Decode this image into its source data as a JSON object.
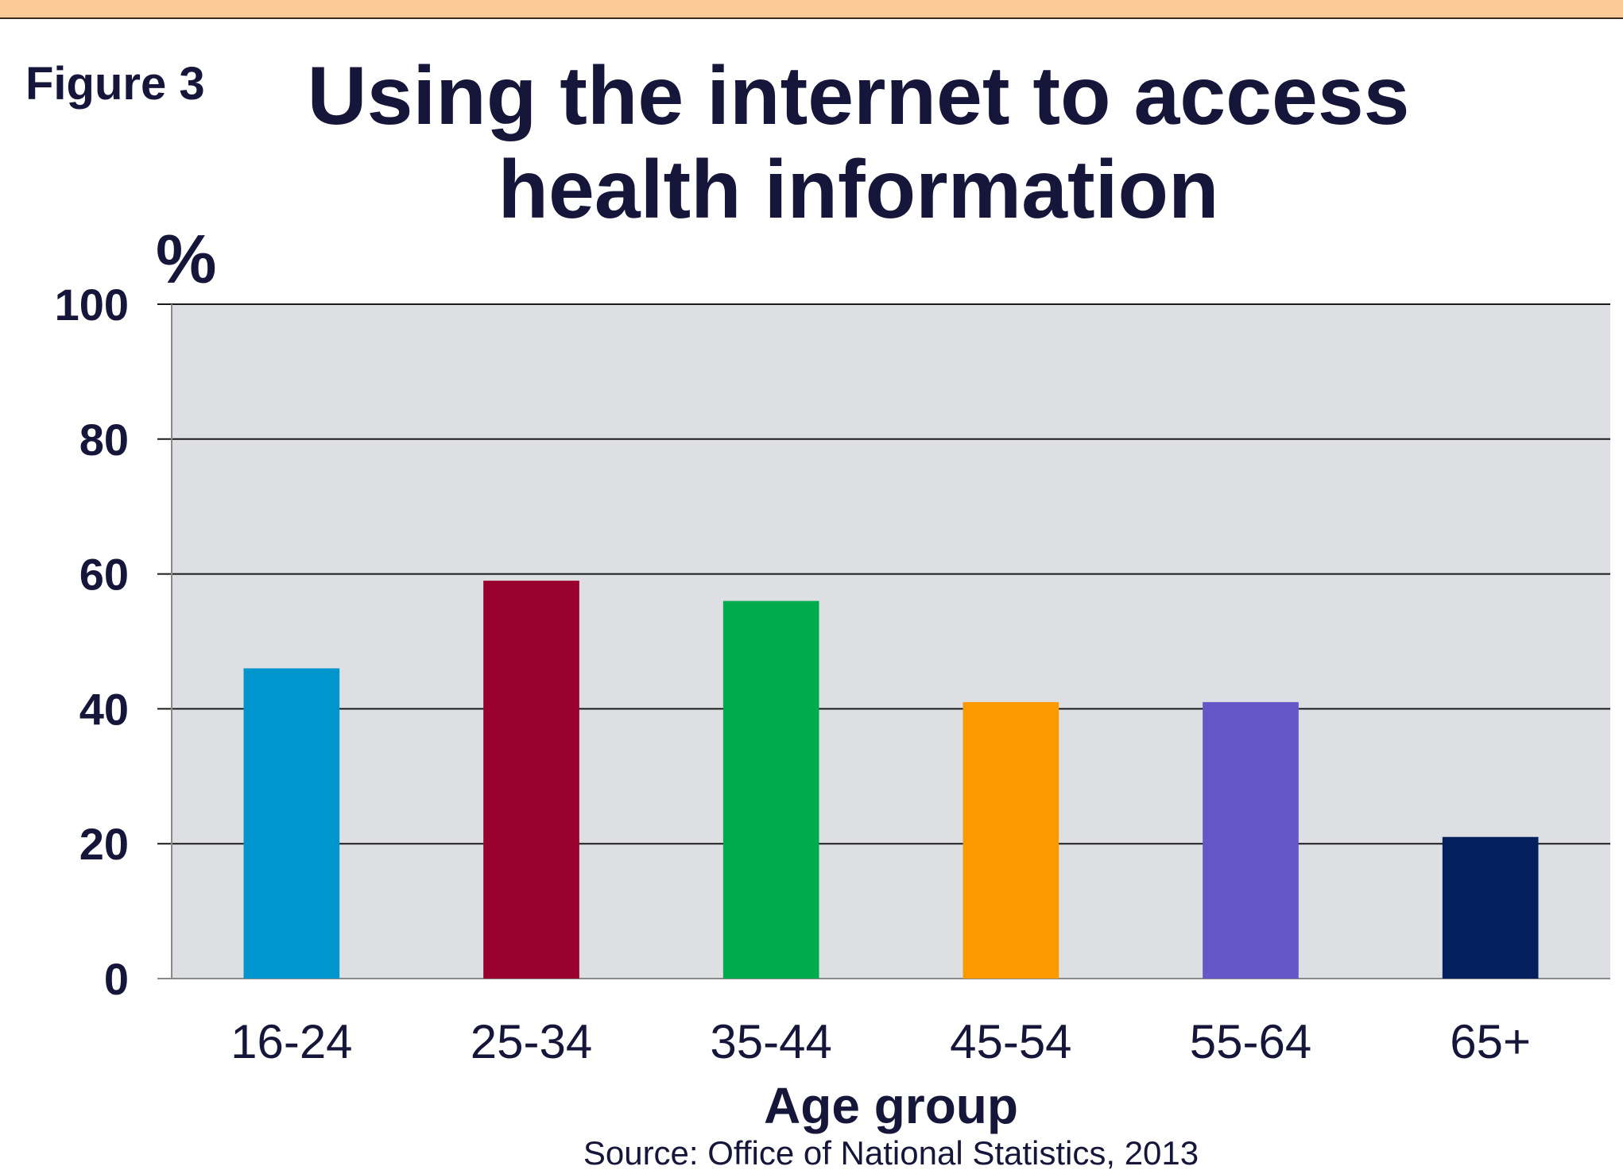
{
  "colors": {
    "top_band": "#fcc997",
    "plot_bg": "#dedfe3",
    "gridline": "#1a1a1a",
    "text": "#16163a"
  },
  "figure_label": "Figure 3",
  "title_line1": "Using the internet to access",
  "title_line2": "health information",
  "source": "Source: Office of National Statistics, 2013",
  "chart_data": {
    "type": "bar",
    "title": "Using the internet to access health information",
    "ylabel": "%",
    "xlabel": "Age group",
    "categories": [
      "16-24",
      "25-34",
      "35-44",
      "45-54",
      "55-64",
      "65+"
    ],
    "values": [
      46,
      59,
      56,
      41,
      41,
      21
    ],
    "bar_colors": [
      "#0095cc",
      "#98002e",
      "#00ab4e",
      "#fb9a00",
      "#6756c8",
      "#03205d"
    ],
    "ylim": [
      0,
      100
    ],
    "yticks": [
      0,
      20,
      40,
      60,
      80,
      100
    ],
    "grid": true,
    "legend": "none"
  }
}
